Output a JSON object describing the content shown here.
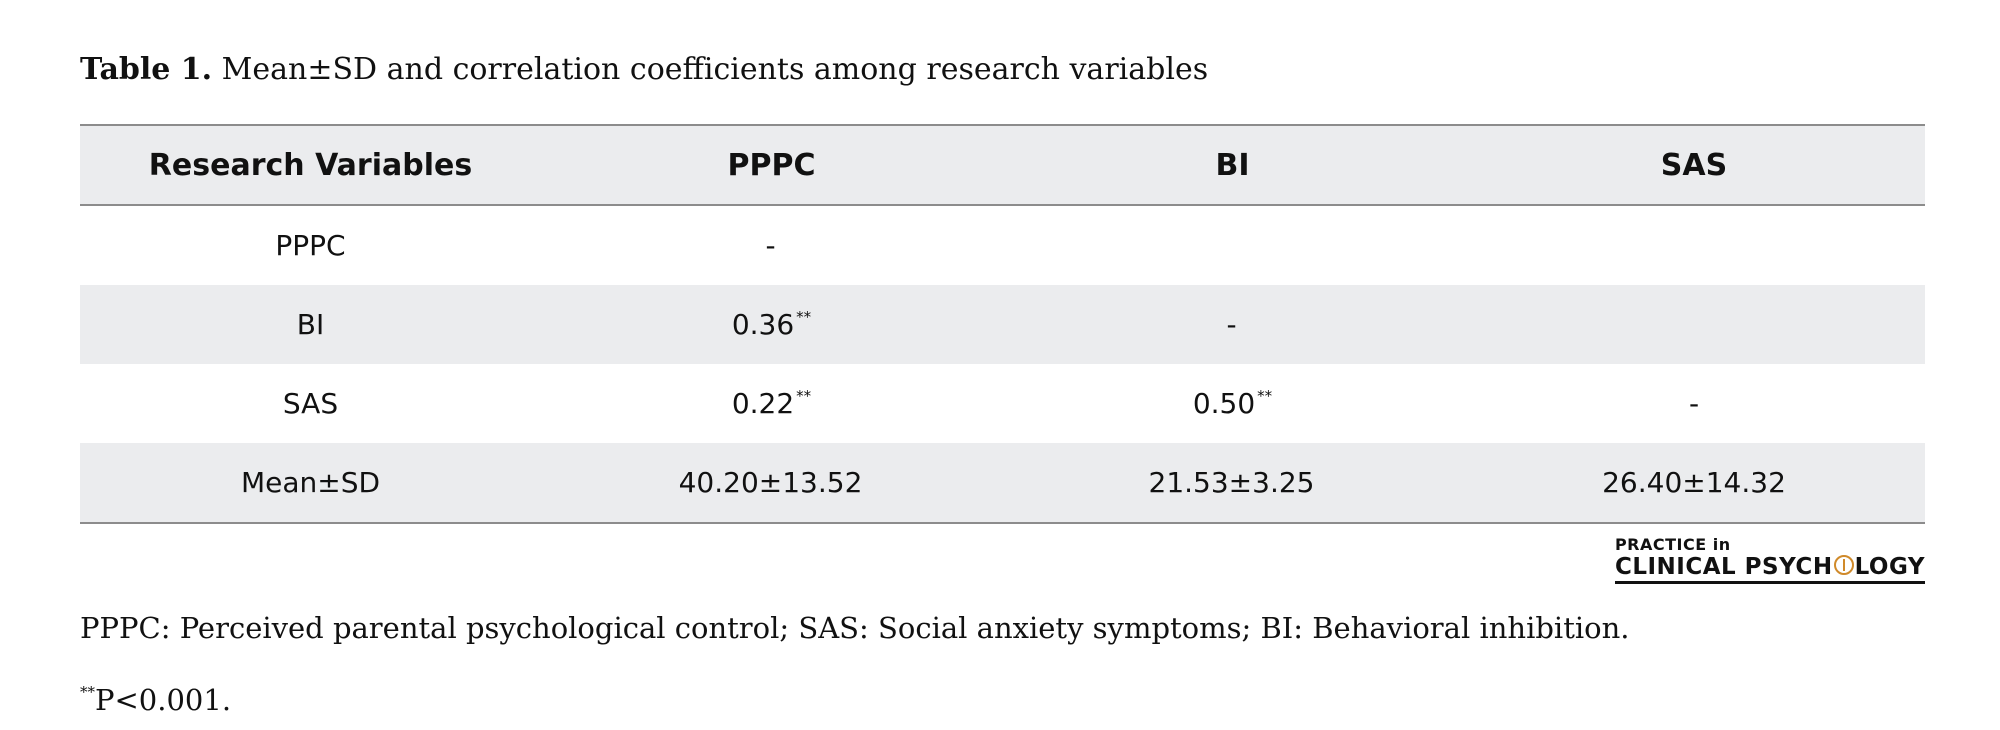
{
  "caption": {
    "label": "Table 1.",
    "text": " Mean±SD and correlation coefficients among research variables"
  },
  "table": {
    "headers": [
      "Research Variables",
      "PPPC",
      "BI",
      "SAS"
    ],
    "rows": [
      {
        "variable": "PPPC",
        "pppc": "-",
        "pppc_sig": "",
        "bi": "",
        "bi_sig": "",
        "sas": ""
      },
      {
        "variable": "BI",
        "pppc": "0.36",
        "pppc_sig": "**",
        "bi": "-",
        "bi_sig": "",
        "sas": ""
      },
      {
        "variable": "SAS",
        "pppc": "0.22",
        "pppc_sig": "**",
        "bi": "0.50",
        "bi_sig": "**",
        "sas": "-"
      },
      {
        "variable": "Mean±SD",
        "pppc": "40.20±13.52",
        "pppc_sig": "",
        "bi": "21.53±3.25",
        "bi_sig": "",
        "sas": "26.40±14.32"
      }
    ]
  },
  "logo": {
    "line1": "PRACTICE in",
    "line2_a": "CLINICAL PSYCH",
    "line2_b": "LOGY"
  },
  "footnotes": {
    "abbreviations": "PPPC: Perceived parental psychological control; SAS: Social anxiety symptoms; BI: Behavioral inhibition.",
    "sig_marker": "**",
    "sig_text": "P<0.001."
  }
}
